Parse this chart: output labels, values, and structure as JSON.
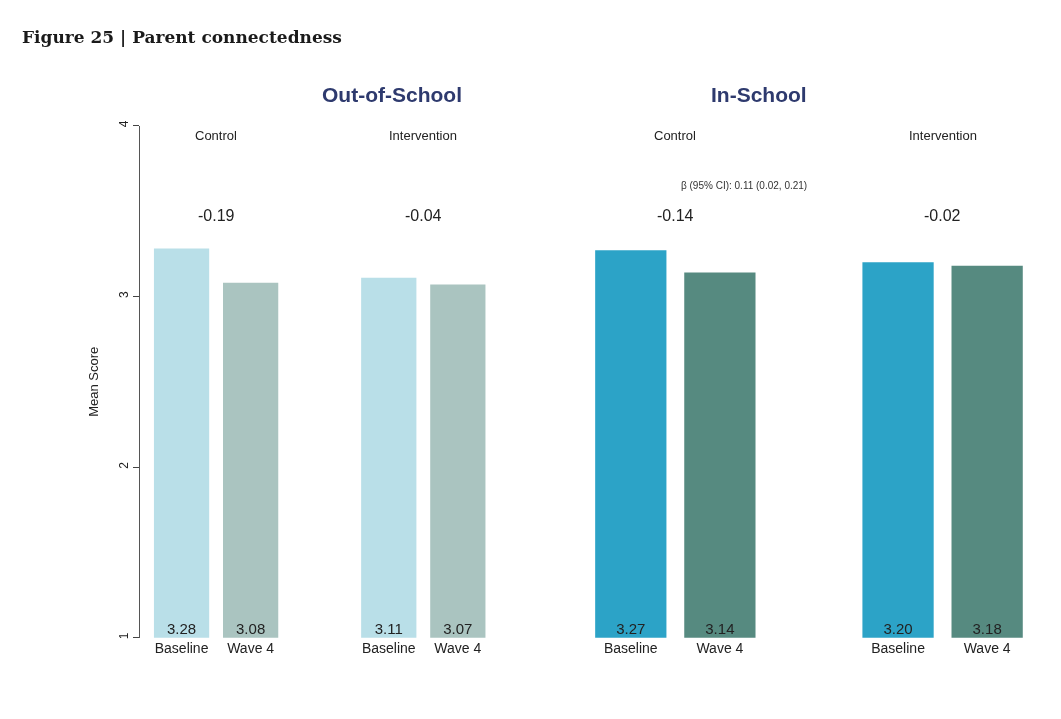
{
  "chart_data": [
    {
      "type": "bar",
      "title": "Out-of-School",
      "ylabel": "Mean Score",
      "categories": [
        "Baseline",
        "Wave 4",
        "Baseline",
        "Wave 4"
      ],
      "values": [
        3.28,
        3.08,
        3.11,
        3.07
      ],
      "colors": [
        "#b9dfe8",
        "#aac4c0",
        "#b9dfe8",
        "#aac4c0"
      ],
      "ylim": [
        1,
        4
      ],
      "yticks": [
        1,
        2,
        3,
        4
      ],
      "value_labels": [
        "3.28",
        "3.08",
        "3.11",
        "3.07"
      ],
      "annotations": [
        "Control",
        "Intervention",
        "-0.19",
        "-0.04",
        "Figure 25 | Parent connectedness"
      ]
    },
    {
      "type": "bar",
      "title": "In-School",
      "categories": [
        "Baseline",
        "Wave 4",
        "Baseline",
        "Wave 4"
      ],
      "values": [
        3.27,
        3.14,
        3.2,
        3.18
      ],
      "colors": [
        "#2ca3c7",
        "#568a80",
        "#2ca3c7",
        "#568a80"
      ],
      "ylim": [
        1,
        4
      ],
      "value_labels": [
        "3.27",
        "3.14",
        "3.20",
        "3.18"
      ],
      "tick_labels": "x",
      "annotations": [
        "Control",
        "Intervention",
        "-0.14",
        "-0.02",
        "β (95% CI): 0.11 (0.02, 0.21)"
      ]
    }
  ]
}
